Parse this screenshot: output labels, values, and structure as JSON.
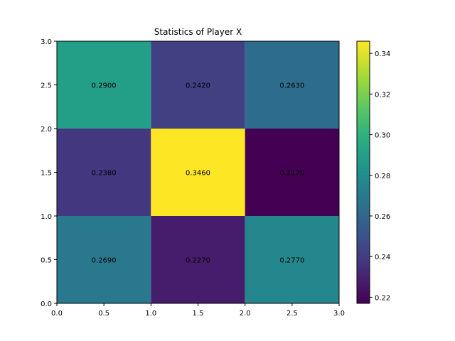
{
  "chart_data": {
    "type": "heatmap",
    "title": "Statistics of Player X",
    "xlabel": "",
    "ylabel": "",
    "x_edges": [
      0.0,
      1.0,
      2.0,
      3.0
    ],
    "y_edges": [
      0.0,
      1.0,
      2.0,
      3.0
    ],
    "xlim": [
      0.0,
      3.0
    ],
    "ylim": [
      0.0,
      3.0
    ],
    "x_ticks": [
      "0.0",
      "0.5",
      "1.0",
      "1.5",
      "2.0",
      "2.5",
      "3.0"
    ],
    "y_ticks": [
      "0.0",
      "0.5",
      "1.0",
      "1.5",
      "2.0",
      "2.5",
      "3.0"
    ],
    "x_tick_values": [
      0.0,
      0.5,
      1.0,
      1.5,
      2.0,
      2.5,
      3.0
    ],
    "y_tick_values": [
      0.0,
      0.5,
      1.0,
      1.5,
      2.0,
      2.5,
      3.0
    ],
    "rows_bottom_to_top": [
      [
        0.269,
        0.227,
        0.277
      ],
      [
        0.238,
        0.346,
        0.217
      ],
      [
        0.29,
        0.242,
        0.263
      ]
    ],
    "cell_labels_bottom_to_top": [
      [
        "0.2690",
        "0.2270",
        "0.2770"
      ],
      [
        "0.2380",
        "0.3460",
        "0.2170"
      ],
      [
        "0.2900",
        "0.2420",
        "0.2630"
      ]
    ],
    "colormap": "viridis",
    "colorbar": {
      "min": 0.217,
      "max": 0.346,
      "ticks": [
        "0.22",
        "0.24",
        "0.26",
        "0.28",
        "0.30",
        "0.32",
        "0.34"
      ],
      "tick_values": [
        0.22,
        0.24,
        0.26,
        0.28,
        0.3,
        0.32,
        0.34
      ]
    },
    "grid": false
  }
}
